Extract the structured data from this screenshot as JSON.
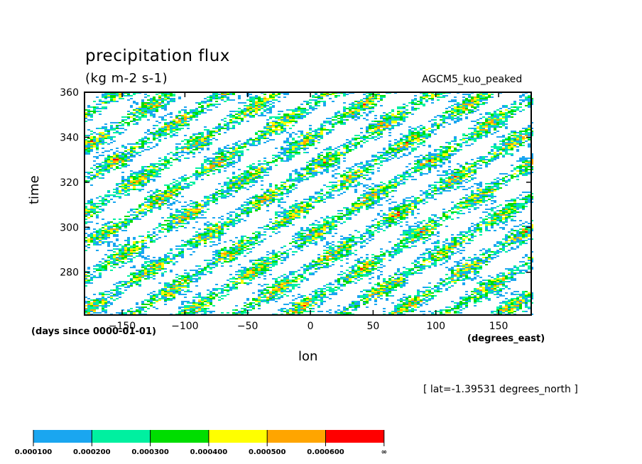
{
  "chart_data": {
    "type": "heatmap",
    "title": "precipitation flux",
    "units": "(kg m-2 s-1)",
    "model_label": "AGCM5_kuo_peaked",
    "xlabel": "lon",
    "ylabel": "time",
    "x_units": "(degrees_east)",
    "time_units": "(days since 0000-01-01)",
    "annotation": "[ lat=-1.39531 degrees_north ]",
    "xlim": [
      -180,
      176
    ],
    "ylim": [
      261,
      360
    ],
    "x_ticks": [
      -150,
      -100,
      -50,
      0,
      50,
      100,
      150
    ],
    "y_ticks": [
      280,
      300,
      320,
      340,
      360
    ],
    "x_tick_labels": [
      "−150",
      "−100",
      "−50",
      "0",
      "50",
      "100",
      "150"
    ],
    "y_tick_labels": [
      "280",
      "300",
      "320",
      "340",
      "360"
    ],
    "colorbar": {
      "boundaries": [
        "0.000100",
        "0.000200",
        "0.000300",
        "0.000400",
        "0.000500",
        "0.000600",
        "∞"
      ],
      "colors": [
        "#1aa6f0",
        "#00f0a0",
        "#00dd00",
        "#ffff00",
        "#ffa500",
        "#ff0000"
      ]
    },
    "background": "#ffffff"
  }
}
